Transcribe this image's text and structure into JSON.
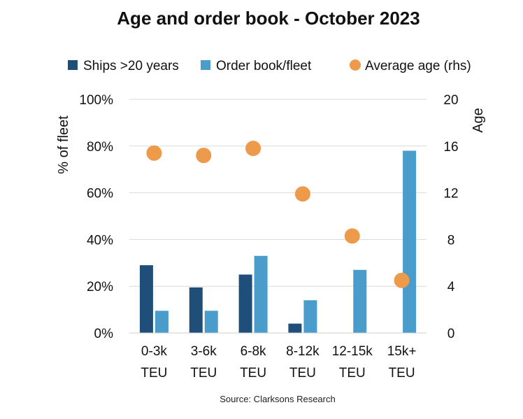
{
  "chart_data": {
    "type": "bar",
    "title": "Age and order book  - October 2023",
    "source": "Source: Clarksons Research",
    "categories": [
      {
        "line1": "0-3k",
        "line2": "TEU"
      },
      {
        "line1": "3-6k",
        "line2": "TEU"
      },
      {
        "line1": "6-8k",
        "line2": "TEU"
      },
      {
        "line1": "8-12k",
        "line2": "TEU"
      },
      {
        "line1": "12-15k",
        "line2": "TEU"
      },
      {
        "line1": "15k+",
        "line2": "TEU"
      }
    ],
    "series": [
      {
        "name": "Ships >20 years",
        "type": "bar",
        "axis": "left",
        "color": "#1f4e79",
        "values": [
          29,
          19.5,
          25,
          4,
          0,
          0
        ]
      },
      {
        "name": "Order book/fleet",
        "type": "bar",
        "axis": "left",
        "color": "#4a9ccb",
        "values": [
          9.5,
          9.5,
          33,
          14,
          27,
          78
        ]
      },
      {
        "name": "Average age (rhs)",
        "type": "scatter",
        "axis": "right",
        "color": "#ed9a4b",
        "values": [
          15.4,
          15.2,
          15.8,
          11.9,
          8.3,
          4.5
        ]
      }
    ],
    "yaxis_left": {
      "label": "% of fleet",
      "min": 0,
      "max": 100,
      "ticks": [
        "0%",
        "20%",
        "40%",
        "60%",
        "80%",
        "100%"
      ],
      "tick_values": [
        0,
        20,
        40,
        60,
        80,
        100
      ]
    },
    "yaxis_right": {
      "label": "Age",
      "min": 0,
      "max": 20,
      "ticks": [
        "0",
        "4",
        "8",
        "12",
        "16",
        "20"
      ],
      "tick_values": [
        0,
        4,
        8,
        12,
        16,
        20
      ]
    },
    "legend_position": "top",
    "grid": true
  }
}
